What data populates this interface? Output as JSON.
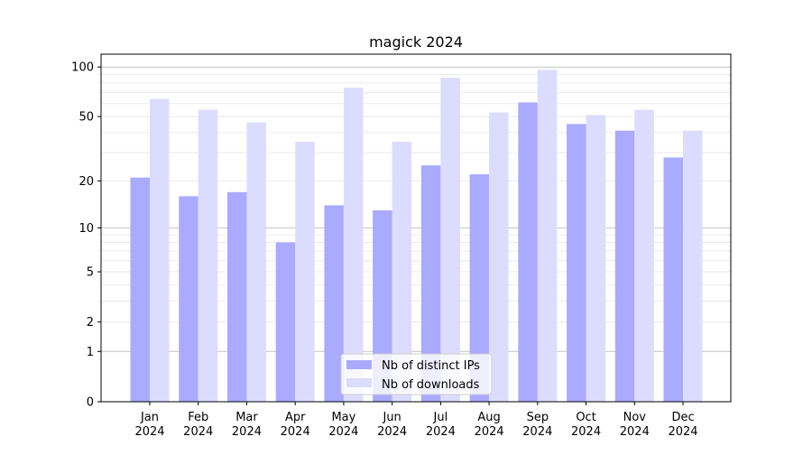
{
  "chart_data": {
    "type": "bar",
    "title": "magick 2024",
    "xlabel": "",
    "ylabel": "",
    "yscale": "log(x+1)",
    "ylim": [
      0,
      125
    ],
    "yticks": [
      0,
      1,
      2,
      5,
      10,
      20,
      50,
      100
    ],
    "ytick_labels": [
      "0",
      "1",
      "2",
      "5",
      "10",
      "20",
      "50",
      "100"
    ],
    "categories": [
      "Jan\n2024",
      "Feb\n2024",
      "Mar\n2024",
      "Apr\n2024",
      "May\n2024",
      "Jun\n2024",
      "Jul\n2024",
      "Aug\n2024",
      "Sep\n2024",
      "Oct\n2024",
      "Nov\n2024",
      "Dec\n2024"
    ],
    "series": [
      {
        "name": "Nb of distinct IPs",
        "color": "#aaaaff",
        "values": [
          21,
          16,
          17,
          8,
          14,
          13,
          25,
          22,
          61,
          45,
          41,
          28
        ]
      },
      {
        "name": "Nb of downloads",
        "color": "#dcdcff",
        "values": [
          64,
          55,
          46,
          35,
          75,
          35,
          86,
          53,
          96,
          51,
          55,
          41
        ]
      }
    ],
    "grid": true,
    "legend_position": "lower-center"
  }
}
